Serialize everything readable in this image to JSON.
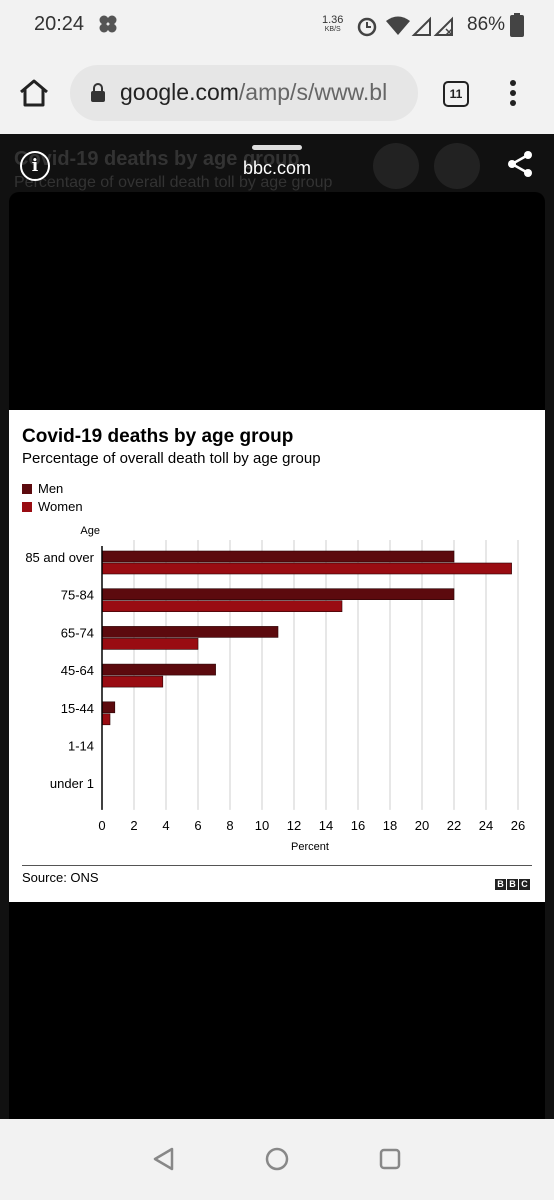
{
  "status_bar": {
    "time": "20:24",
    "net_speed": "1.36",
    "net_unit": "KB/S",
    "battery": "86%"
  },
  "browser": {
    "url_main": "google.com",
    "url_rest": "/amp/s/www.bl",
    "tab_count": "11"
  },
  "overlay": {
    "site": "bbc.com",
    "bg_title": "Covid-19 deaths by age group",
    "bg_subtitle": "Percentage of overall death toll by age group"
  },
  "card": {
    "source": "Source: ONS",
    "logo": [
      "B",
      "B",
      "C"
    ]
  },
  "colors": {
    "men": "#5c0a0e",
    "women": "#990c12"
  },
  "chart_data": {
    "type": "bar",
    "orientation": "horizontal",
    "title": "Covid-19 deaths by age group",
    "subtitle": "Percentage of overall death toll by age group",
    "y_axis_title": "Age",
    "xlabel": "Percent",
    "categories": [
      "85 and over",
      "75-84",
      "65-74",
      "45-64",
      "15-44",
      "1-14",
      "under 1"
    ],
    "series": [
      {
        "name": "Men",
        "values": [
          22,
          22,
          11,
          7.1,
          0.8,
          0,
          0
        ]
      },
      {
        "name": "Women",
        "values": [
          25.6,
          15,
          6,
          3.8,
          0.5,
          0,
          0
        ]
      }
    ],
    "xlim": [
      0,
      26
    ],
    "xticks": [
      0,
      2,
      4,
      6,
      8,
      10,
      12,
      14,
      16,
      18,
      20,
      22,
      24,
      26
    ],
    "grid": true,
    "legend": "top-left"
  }
}
